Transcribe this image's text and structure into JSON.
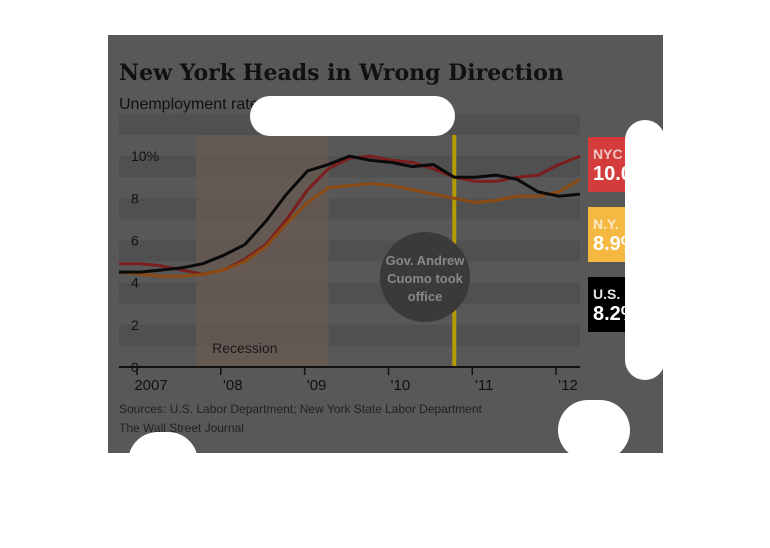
{
  "title": "New York Heads in Wrong Direction",
  "subtitle": "Unemployment rates, seasonally adjusted",
  "source": "Sources: U.S. Labor Department; New York State Labor Department",
  "credit": "The Wall Street Journal",
  "annotations": {
    "recession": "Recession",
    "cuomo": [
      "Gov. Andrew",
      "Cuomo took",
      "office"
    ],
    "cuomo_date": 2011.0
  },
  "colors": {
    "nyc": "#7a1e1e",
    "ny": "#8a4a12",
    "us": "#0a0a0a",
    "nyc_tag": "#d43c3c",
    "ny_tag": "#f5b942",
    "us_tag": "#000000",
    "cuomo_line": "#b59a00",
    "recession_shade": "#6a5a52"
  },
  "chart_data": {
    "type": "line",
    "title": "New York Heads in Wrong Direction",
    "subtitle": "Unemployment rates, seasonally adjusted",
    "xlabel": "",
    "ylabel": "",
    "ylim": [
      0,
      11
    ],
    "xlim": [
      2007.0,
      2012.5
    ],
    "grid": true,
    "y_ticks": [
      "10%",
      "8",
      "6",
      "4",
      "2",
      "0"
    ],
    "y_tick_values": [
      10,
      8,
      6,
      4,
      2,
      0
    ],
    "x_ticks": [
      "2007",
      "'08",
      "'09",
      "'10",
      "'11",
      "'12"
    ],
    "x_tick_values": [
      2007.0,
      2008.0,
      2009.0,
      2010.0,
      2011.0,
      2012.0
    ],
    "recession": [
      2007.92,
      2009.5
    ],
    "x": [
      2007.0,
      2007.25,
      2007.5,
      2007.75,
      2008.0,
      2008.25,
      2008.5,
      2008.75,
      2009.0,
      2009.25,
      2009.5,
      2009.75,
      2010.0,
      2010.25,
      2010.5,
      2010.75,
      2011.0,
      2011.25,
      2011.5,
      2011.75,
      2012.0,
      2012.25,
      2012.5
    ],
    "series": [
      {
        "name": "NYC",
        "label": "NYC",
        "final": "10.0%",
        "values": [
          4.9,
          4.9,
          4.8,
          4.6,
          4.4,
          4.6,
          5.1,
          5.8,
          7.0,
          8.4,
          9.4,
          9.9,
          10.0,
          9.8,
          9.7,
          9.4,
          9.0,
          8.8,
          8.8,
          9.0,
          9.1,
          9.6,
          10.0
        ]
      },
      {
        "name": "N.Y.",
        "label": "N.Y.",
        "final": "8.9%",
        "values": [
          4.5,
          4.4,
          4.3,
          4.3,
          4.4,
          4.6,
          5.0,
          5.7,
          6.8,
          7.8,
          8.5,
          8.6,
          8.7,
          8.6,
          8.4,
          8.2,
          8.0,
          7.8,
          7.9,
          8.1,
          8.1,
          8.3,
          8.9
        ]
      },
      {
        "name": "U.S.",
        "label": "U.S.",
        "final": "8.2%",
        "values": [
          4.5,
          4.5,
          4.6,
          4.7,
          4.9,
          5.3,
          5.8,
          6.9,
          8.2,
          9.3,
          9.6,
          10.0,
          9.8,
          9.7,
          9.5,
          9.6,
          9.0,
          9.0,
          9.1,
          8.9,
          8.3,
          8.1,
          8.2
        ]
      }
    ]
  }
}
